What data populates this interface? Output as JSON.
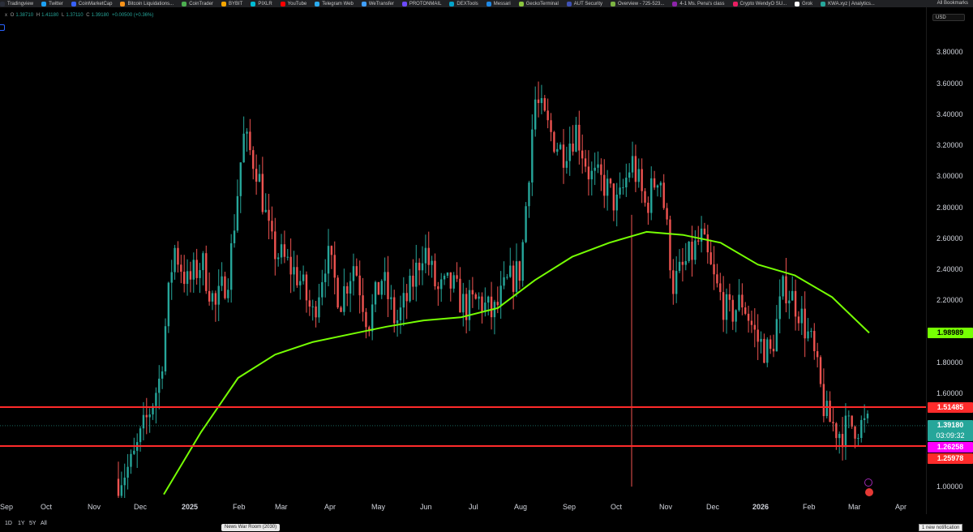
{
  "bookmarks": [
    {
      "label": "Tradingview",
      "color": "#2a2e39"
    },
    {
      "label": "Twitter",
      "color": "#1da1f2"
    },
    {
      "label": "CoinMarketCap",
      "color": "#3861fb"
    },
    {
      "label": "Bitcoin Liquidations...",
      "color": "#f7931a"
    },
    {
      "label": "CoinTrader",
      "color": "#4caf50"
    },
    {
      "label": "BYBIT",
      "color": "#f7a600"
    },
    {
      "label": "PIXLR",
      "color": "#00bcd4"
    },
    {
      "label": "YouTube",
      "color": "#ff0000"
    },
    {
      "label": "Telegram Web",
      "color": "#2aabee"
    },
    {
      "label": "WeTransfer",
      "color": "#409fff"
    },
    {
      "label": "PROTONMAIL",
      "color": "#6d4aff"
    },
    {
      "label": "DEXTools",
      "color": "#05a3c9"
    },
    {
      "label": "Messari",
      "color": "#1e88e5"
    },
    {
      "label": "GeckoTerminal",
      "color": "#8bc53f"
    },
    {
      "label": "AUT Security",
      "color": "#3f51b5"
    },
    {
      "label": "Overview - 725-523...",
      "color": "#7cb342"
    },
    {
      "label": "4-1 Ms. Pena's class",
      "color": "#8e24aa"
    },
    {
      "label": "Crypto WendyO SU...",
      "color": "#e91e63"
    },
    {
      "label": "Grok",
      "color": "#ffffff"
    },
    {
      "label": "KWA.xyz | Analytics...",
      "color": "#26a69a"
    }
  ],
  "all_bookmarks": "All Bookmarks",
  "ohlc": {
    "prefix": "x",
    "o": "1.38710",
    "h": "1.41180",
    "l": "1.37110",
    "c": "1.39180",
    "chg": "+0.00500 (+0.36%)"
  },
  "currency": "USD",
  "price_ticks": [
    "3.80000",
    "3.60000",
    "3.40000",
    "3.20000",
    "3.00000",
    "2.80000",
    "2.60000",
    "2.40000",
    "2.20000",
    "1.80000",
    "1.60000",
    "1.00000"
  ],
  "time_ticks": [
    "Sep",
    "Oct",
    "Nov",
    "Dec",
    "2025",
    "Feb",
    "Mar",
    "Apr",
    "May",
    "Jun",
    "Jul",
    "Aug",
    "Sep",
    "Oct",
    "Nov",
    "Dec",
    "2026",
    "Feb",
    "Mar",
    "Apr"
  ],
  "badges": {
    "ma": "1.98989",
    "resistance": "1.51485",
    "last": "1.39180",
    "countdown": "03:09:32",
    "magenta": "1.26258",
    "support": "1.25978"
  },
  "ranges": [
    "1D",
    "1Y",
    "5Y",
    "All"
  ],
  "news": "News War Room (2030)",
  "notification": "1 new notification",
  "colors": {
    "up": "#26a69a",
    "down": "#ef5350",
    "ma": "#76ff03",
    "hline": "#ff2b2b",
    "last": "#26a69a",
    "magenta": "#ff00ff"
  },
  "chart_data": {
    "type": "candlestick",
    "ylim": [
      0.95,
      3.9
    ],
    "closes": [
      1.05,
      1.15,
      1.42,
      1.7,
      2.55,
      2.3,
      2.45,
      2.15,
      2.4,
      3.25,
      3.05,
      2.55,
      2.45,
      2.35,
      2.1,
      2.5,
      2.2,
      2.45,
      2.05,
      2.35,
      2.05,
      2.25,
      2.55,
      2.25,
      2.3,
      2.15,
      2.2,
      2.1,
      2.3,
      2.4,
      3.5,
      3.3,
      3.15,
      3.3,
      3.0,
      2.95,
      2.8,
      3.1,
      2.8,
      3.05,
      2.3,
      2.45,
      2.6,
      2.3,
      2.1,
      2.2,
      1.95,
      1.85,
      2.3,
      2.15,
      1.9,
      1.45,
      1.35,
      1.4,
      1.39
    ],
    "ma_values": [
      0.95,
      1.35,
      1.7,
      1.85,
      1.93,
      1.98,
      2.03,
      2.07,
      2.09,
      2.15,
      2.33,
      2.48,
      2.57,
      2.64,
      2.62,
      2.57,
      2.43,
      2.36,
      2.22,
      1.99
    ],
    "levels": {
      "resistance": 1.51485,
      "support": 1.25978
    }
  }
}
